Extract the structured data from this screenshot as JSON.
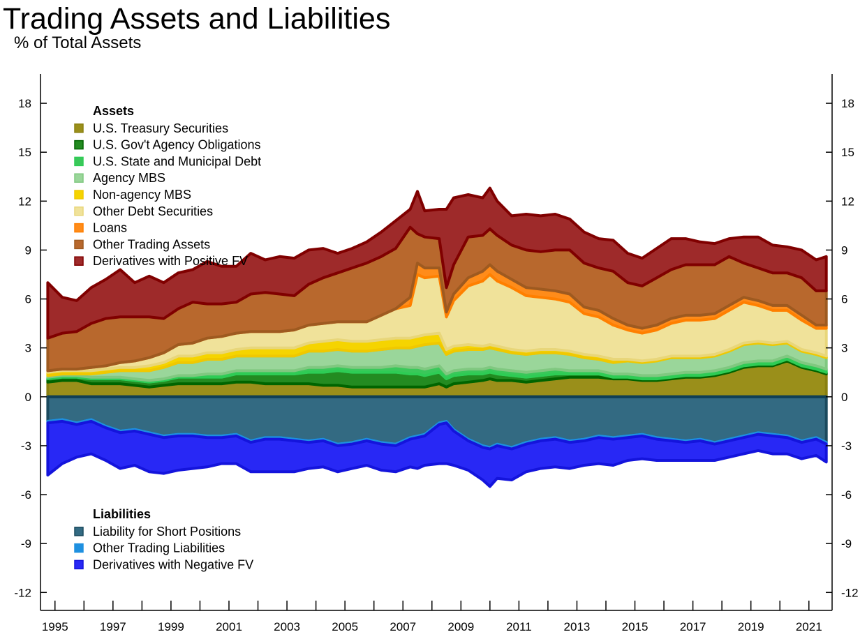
{
  "title": "Trading Assets and Liabilities",
  "subtitle": "% of Total Assets",
  "chart_data": {
    "type": "area",
    "title": "Trading Assets and Liabilities",
    "ylabel": "% of Total Assets",
    "xlim": [
      1994.5,
      2021.8
    ],
    "ylim": [
      -13.1,
      19.8
    ],
    "y_ticks": [
      18,
      15,
      12,
      9,
      6,
      3,
      0,
      -3,
      -6,
      -9,
      -12
    ],
    "x_tick_labels": [
      "1995",
      "1997",
      "1999",
      "2001",
      "2003",
      "2005",
      "2007",
      "2009",
      "2011",
      "2013",
      "2015",
      "2017",
      "2019",
      "2021"
    ],
    "stacked": true,
    "grid": false,
    "legend_groups": [
      {
        "heading": "Assets",
        "entries": [
          "U.S. Treasury Securities",
          "U.S. Gov't Agency Obligations",
          "U.S. State and Municipal Debt",
          "Agency MBS",
          "Non-agency MBS",
          "Other Debt Securities",
          "Loans",
          "Other Trading Assets",
          "Derivatives with Positive FV"
        ]
      },
      {
        "heading": "Liabilities",
        "entries": [
          "Liability for Short Positions",
          "Other Trading Liabilities",
          "Derivatives with Negative FV"
        ]
      }
    ],
    "x": [
      1994.75,
      1995.25,
      1995.75,
      1996.25,
      1996.75,
      1997.25,
      1997.75,
      1998.25,
      1998.75,
      1999.25,
      1999.75,
      2000.25,
      2000.75,
      2001.25,
      2001.75,
      2002.25,
      2002.75,
      2003.25,
      2003.75,
      2004.25,
      2004.75,
      2005.25,
      2005.75,
      2006.25,
      2006.75,
      2007.25,
      2007.5,
      2007.75,
      2008.25,
      2008.5,
      2008.75,
      2009.25,
      2009.75,
      2010.0,
      2010.25,
      2010.75,
      2011.25,
      2011.75,
      2012.25,
      2012.75,
      2013.25,
      2013.75,
      2014.25,
      2014.75,
      2015.25,
      2015.75,
      2016.25,
      2016.75,
      2017.25,
      2017.75,
      2018.25,
      2018.75,
      2019.25,
      2019.75,
      2020.25,
      2020.75,
      2021.25,
      2021.6
    ],
    "asset_series": [
      {
        "name": "U.S. Treasury Securities",
        "color": "#9a8f1a",
        "edge": "#8a8010",
        "values": [
          0.9,
          1.0,
          1.0,
          0.8,
          0.8,
          0.8,
          0.7,
          0.6,
          0.7,
          0.8,
          0.8,
          0.8,
          0.8,
          0.9,
          0.9,
          0.8,
          0.8,
          0.8,
          0.8,
          0.7,
          0.7,
          0.6,
          0.6,
          0.6,
          0.6,
          0.6,
          0.6,
          0.6,
          0.8,
          0.6,
          0.8,
          0.9,
          1.0,
          1.1,
          1.0,
          1.0,
          0.9,
          1.0,
          1.1,
          1.2,
          1.2,
          1.2,
          1.1,
          1.1,
          1.0,
          1.0,
          1.1,
          1.2,
          1.2,
          1.3,
          1.5,
          1.8,
          1.9,
          1.9,
          2.2,
          1.8,
          1.6,
          1.4
        ]
      },
      {
        "name": "U.S. Gov't Agency Obligations",
        "color": "#238b21",
        "edge": "#006400",
        "values": [
          0.2,
          0.2,
          0.2,
          0.3,
          0.3,
          0.3,
          0.3,
          0.3,
          0.3,
          0.4,
          0.4,
          0.4,
          0.4,
          0.5,
          0.5,
          0.6,
          0.6,
          0.6,
          0.7,
          0.8,
          0.9,
          0.9,
          0.9,
          0.9,
          0.9,
          0.8,
          0.8,
          0.7,
          0.7,
          0.5,
          0.5,
          0.5,
          0.4,
          0.4,
          0.4,
          0.3,
          0.3,
          0.3,
          0.3,
          0.2,
          0.2,
          0.2,
          0.1,
          0.1,
          0.1,
          0.1,
          0.1,
          0.1,
          0.1,
          0.1,
          0.1,
          0.1,
          0.1,
          0.1,
          0.1,
          0.1,
          0.1,
          0.1
        ]
      },
      {
        "name": "U.S. State and Municipal Debt",
        "color": "#3ac85a",
        "edge": "#2ecc55",
        "values": [
          0.1,
          0.1,
          0.1,
          0.1,
          0.1,
          0.1,
          0.1,
          0.1,
          0.1,
          0.1,
          0.1,
          0.2,
          0.2,
          0.2,
          0.2,
          0.2,
          0.2,
          0.2,
          0.3,
          0.3,
          0.3,
          0.3,
          0.3,
          0.3,
          0.4,
          0.4,
          0.4,
          0.4,
          0.4,
          0.3,
          0.3,
          0.3,
          0.3,
          0.3,
          0.3,
          0.3,
          0.3,
          0.3,
          0.3,
          0.2,
          0.2,
          0.2,
          0.2,
          0.2,
          0.2,
          0.2,
          0.2,
          0.2,
          0.2,
          0.2,
          0.2,
          0.2,
          0.2,
          0.2,
          0.2,
          0.2,
          0.2,
          0.2
        ]
      },
      {
        "name": "Agency MBS",
        "color": "#9ad69a",
        "edge": "#80c880",
        "values": [
          0.1,
          0.1,
          0.1,
          0.2,
          0.3,
          0.4,
          0.5,
          0.6,
          0.7,
          0.8,
          0.8,
          0.9,
          0.9,
          0.9,
          0.9,
          0.9,
          0.9,
          0.9,
          1.0,
          1.0,
          1.0,
          1.0,
          1.0,
          1.1,
          1.1,
          1.2,
          1.3,
          1.5,
          1.4,
          1.2,
          1.2,
          1.2,
          1.2,
          1.2,
          1.2,
          1.1,
          1.1,
          1.1,
          1.0,
          1.0,
          0.8,
          0.7,
          0.7,
          0.8,
          0.8,
          0.9,
          1.0,
          0.9,
          0.9,
          0.9,
          1.0,
          1.1,
          1.1,
          1.0,
          0.8,
          0.7,
          0.7,
          0.7
        ]
      },
      {
        "name": "Non-agency MBS",
        "color": "#f5d400",
        "edge": "#f0c800",
        "values": [
          0.2,
          0.2,
          0.2,
          0.2,
          0.2,
          0.2,
          0.2,
          0.3,
          0.3,
          0.4,
          0.4,
          0.4,
          0.4,
          0.4,
          0.5,
          0.5,
          0.5,
          0.5,
          0.5,
          0.6,
          0.6,
          0.6,
          0.6,
          0.6,
          0.6,
          0.6,
          0.6,
          0.6,
          0.6,
          0.3,
          0.3,
          0.3,
          0.2,
          0.2,
          0.2,
          0.2,
          0.2,
          0.2,
          0.2,
          0.2,
          0.2,
          0.2,
          0.2,
          0.1,
          0.1,
          0.1,
          0.1,
          0.1,
          0.1,
          0.1,
          0.1,
          0.1,
          0.1,
          0.1,
          0.1,
          0.1,
          0.1,
          0.1
        ]
      },
      {
        "name": "Other Debt Securities",
        "color": "#f0e29a",
        "edge": "#e8d67a",
        "values": [
          0.1,
          0.1,
          0.1,
          0.2,
          0.2,
          0.3,
          0.4,
          0.5,
          0.6,
          0.7,
          0.8,
          0.9,
          1.0,
          1.0,
          1.0,
          1.0,
          1.0,
          1.1,
          1.1,
          1.1,
          1.1,
          1.2,
          1.2,
          1.5,
          1.8,
          2.0,
          3.8,
          3.5,
          3.5,
          2.0,
          2.8,
          3.6,
          4.0,
          4.3,
          4.0,
          3.8,
          3.4,
          3.2,
          3.1,
          3.0,
          2.5,
          2.4,
          2.1,
          1.8,
          1.7,
          1.8,
          2.0,
          2.2,
          2.2,
          2.2,
          2.4,
          2.5,
          2.2,
          2.0,
          1.9,
          1.8,
          1.5,
          1.7
        ]
      },
      {
        "name": "Loans",
        "color": "#ff8c1a",
        "edge": "#ff7f00",
        "values": [
          0.0,
          0.0,
          0.0,
          0.0,
          0.0,
          0.0,
          0.0,
          0.0,
          0.0,
          0.0,
          0.0,
          0.0,
          0.0,
          0.0,
          0.0,
          0.0,
          0.0,
          0.0,
          0.0,
          0.0,
          0.0,
          0.0,
          0.0,
          0.0,
          0.0,
          0.5,
          0.7,
          0.6,
          0.5,
          0.3,
          0.4,
          0.5,
          0.6,
          0.6,
          0.6,
          0.5,
          0.5,
          0.5,
          0.5,
          0.5,
          0.4,
          0.4,
          0.4,
          0.3,
          0.3,
          0.3,
          0.3,
          0.3,
          0.3,
          0.3,
          0.3,
          0.3,
          0.3,
          0.3,
          0.3,
          0.3,
          0.2,
          0.2
        ]
      },
      {
        "name": "Other Trading Assets",
        "color": "#b8682d",
        "edge": "#9e5a20",
        "values": [
          2.0,
          2.2,
          2.3,
          2.7,
          2.9,
          2.8,
          2.7,
          2.5,
          2.1,
          2.2,
          2.5,
          2.1,
          2.0,
          1.9,
          2.3,
          2.4,
          2.3,
          2.1,
          2.5,
          2.8,
          3.0,
          3.3,
          3.6,
          3.6,
          3.7,
          4.3,
          1.8,
          1.9,
          1.8,
          1.5,
          1.8,
          2.5,
          2.2,
          2.2,
          2.2,
          2.1,
          2.3,
          2.3,
          2.5,
          2.7,
          2.7,
          2.6,
          2.9,
          2.6,
          2.6,
          2.9,
          3.0,
          3.1,
          3.1,
          3.0,
          3.0,
          2.1,
          2.0,
          2.0,
          2.0,
          2.3,
          2.1,
          2.1
        ]
      },
      {
        "name": "Derivatives with Positive FV",
        "color": "#9e2a2a",
        "edge": "#800000",
        "values": [
          3.4,
          2.2,
          1.9,
          2.2,
          2.4,
          2.9,
          2.1,
          2.5,
          2.2,
          2.2,
          2.0,
          2.6,
          2.3,
          2.2,
          2.5,
          2.0,
          2.3,
          2.3,
          2.1,
          1.8,
          1.2,
          1.2,
          1.3,
          1.5,
          1.7,
          1.1,
          2.6,
          1.6,
          1.8,
          4.8,
          4.1,
          2.6,
          2.3,
          2.5,
          2.1,
          1.8,
          2.2,
          2.2,
          2.2,
          1.9,
          1.9,
          1.8,
          1.9,
          1.8,
          1.7,
          1.8,
          1.9,
          1.6,
          1.4,
          1.3,
          1.1,
          1.6,
          1.9,
          1.7,
          1.6,
          1.7,
          1.9,
          2.1
        ]
      }
    ],
    "liability_series": [
      {
        "name": "Liability for Short Positions",
        "color": "#336a82",
        "edge": "#1b4a5e",
        "values": [
          -1.5,
          -1.4,
          -1.6,
          -1.4,
          -1.8,
          -2.1,
          -2.0,
          -2.2,
          -2.4,
          -2.3,
          -2.3,
          -2.4,
          -2.4,
          -2.3,
          -2.7,
          -2.5,
          -2.5,
          -2.6,
          -2.7,
          -2.6,
          -2.9,
          -2.8,
          -2.6,
          -2.8,
          -2.9,
          -2.5,
          -2.4,
          -2.3,
          -1.6,
          -1.5,
          -2.0,
          -2.6,
          -3.0,
          -3.1,
          -2.9,
          -3.1,
          -2.8,
          -2.6,
          -2.5,
          -2.7,
          -2.6,
          -2.4,
          -2.5,
          -2.4,
          -2.3,
          -2.5,
          -2.6,
          -2.7,
          -2.6,
          -2.8,
          -2.6,
          -2.4,
          -2.2,
          -2.3,
          -2.4,
          -2.7,
          -2.5,
          -2.8
        ]
      },
      {
        "name": "Other Trading Liabilities",
        "color": "#1e90e0",
        "edge": "#1e90e0",
        "values": [
          -0.1,
          -0.1,
          -0.1,
          -0.1,
          -0.1,
          -0.1,
          -0.1,
          -0.1,
          -0.1,
          -0.1,
          -0.1,
          -0.1,
          -0.1,
          -0.1,
          -0.1,
          -0.1,
          -0.1,
          -0.1,
          -0.1,
          -0.1,
          -0.1,
          -0.1,
          -0.1,
          -0.1,
          -0.1,
          -0.1,
          -0.1,
          -0.1,
          -0.1,
          -0.1,
          -0.1,
          -0.1,
          -0.1,
          -0.1,
          -0.1,
          -0.1,
          -0.1,
          -0.1,
          -0.1,
          -0.1,
          -0.1,
          -0.1,
          -0.1,
          -0.1,
          -0.1,
          -0.1,
          -0.1,
          -0.1,
          -0.1,
          -0.1,
          -0.1,
          -0.1,
          -0.1,
          -0.1,
          -0.1,
          -0.1,
          -0.1,
          -0.1
        ]
      },
      {
        "name": "Derivatives with Negative FV",
        "color": "#2828f5",
        "edge": "#1414dc",
        "values": [
          -3.2,
          -2.6,
          -2.0,
          -2.0,
          -2.0,
          -2.2,
          -2.1,
          -2.3,
          -2.2,
          -2.1,
          -2.0,
          -1.8,
          -1.6,
          -1.7,
          -1.8,
          -2.0,
          -2.0,
          -1.9,
          -1.6,
          -1.6,
          -1.6,
          -1.5,
          -1.5,
          -1.6,
          -1.6,
          -1.7,
          -1.9,
          -1.8,
          -2.4,
          -2.5,
          -2.1,
          -1.8,
          -2.0,
          -2.3,
          -2.0,
          -1.9,
          -1.7,
          -1.7,
          -1.7,
          -1.6,
          -1.5,
          -1.6,
          -1.6,
          -1.4,
          -1.4,
          -1.3,
          -1.2,
          -1.1,
          -1.2,
          -1.0,
          -1.0,
          -1.0,
          -1.0,
          -1.1,
          -1.0,
          -1.0,
          -1.0,
          -1.1
        ]
      }
    ]
  }
}
